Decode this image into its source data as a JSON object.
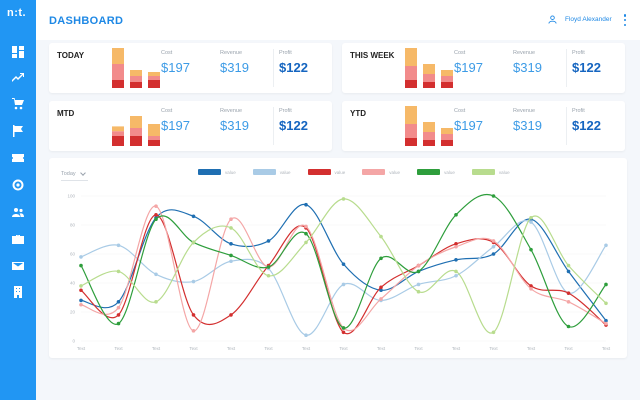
{
  "app": {
    "logo": "n:t.",
    "title": "DASHBOARD",
    "user_name": "Floyd Alexander"
  },
  "sidebar": {
    "items": [
      {
        "icon": "dashboard-icon"
      },
      {
        "icon": "trending-icon"
      },
      {
        "icon": "cart-icon"
      },
      {
        "icon": "flag-icon"
      },
      {
        "icon": "ticket-icon"
      },
      {
        "icon": "target-icon"
      },
      {
        "icon": "users-icon"
      },
      {
        "icon": "briefcase-icon"
      },
      {
        "icon": "mail-icon"
      },
      {
        "icon": "building-icon"
      }
    ]
  },
  "colors": {
    "sidebar": "#2196f3",
    "accent": "#1e88e5",
    "bar_dark": "#d32f2f",
    "bar_mid": "#f28b8b",
    "bar_light": "#f6b968"
  },
  "cards": [
    {
      "title": "TODAY",
      "bars": [
        {
          "light": 0.4,
          "mid": 0.4,
          "dark": 0.2
        },
        {
          "light": 0.15,
          "mid": 0.15,
          "dark": 0.15
        },
        {
          "light": 0.1,
          "mid": 0.1,
          "dark": 0.2
        }
      ],
      "cost_label": "Cost",
      "cost_value": "$197",
      "revenue_label": "Revenue",
      "revenue_value": "$319",
      "profit_label": "Profit",
      "profit_value": "$122"
    },
    {
      "title": "THIS WEEK",
      "bars": [
        {
          "light": 0.45,
          "mid": 0.35,
          "dark": 0.2
        },
        {
          "light": 0.25,
          "mid": 0.2,
          "dark": 0.15
        },
        {
          "light": 0.15,
          "mid": 0.15,
          "dark": 0.15
        }
      ],
      "cost_label": "Cost",
      "cost_value": "$197",
      "revenue_label": "Revenue",
      "revenue_value": "$319",
      "profit_label": "Profit",
      "profit_value": "$122"
    },
    {
      "title": "MTD",
      "bars": [
        {
          "light": 0.12,
          "mid": 0.12,
          "dark": 0.25
        },
        {
          "light": 0.3,
          "mid": 0.2,
          "dark": 0.25
        },
        {
          "light": 0.3,
          "mid": 0.1,
          "dark": 0.15
        }
      ],
      "cost_label": "Cost",
      "cost_value": "$197",
      "revenue_label": "Revenue",
      "revenue_value": "$319",
      "profit_label": "Profit",
      "profit_value": "$122"
    },
    {
      "title": "YTD",
      "bars": [
        {
          "light": 0.45,
          "mid": 0.35,
          "dark": 0.2
        },
        {
          "light": 0.25,
          "mid": 0.2,
          "dark": 0.15
        },
        {
          "light": 0.15,
          "mid": 0.15,
          "dark": 0.15
        }
      ],
      "cost_label": "Cost",
      "cost_value": "$197",
      "revenue_label": "Revenue",
      "revenue_value": "$319",
      "profit_label": "Profit",
      "profit_value": "$122"
    }
  ],
  "period_filter": "Today",
  "chart_data": {
    "type": "line",
    "x": [
      "Text",
      "Text",
      "Text",
      "Text",
      "Text",
      "Text",
      "Text",
      "Text",
      "Text",
      "Text",
      "Text",
      "Text",
      "Text",
      "Text",
      "Text"
    ],
    "ylim": [
      0,
      100
    ],
    "yticks": [
      0,
      20,
      40,
      60,
      80,
      100
    ],
    "grid": true,
    "legend_position": "top",
    "series": [
      {
        "name": "value",
        "color": "#1f6fb2",
        "values": [
          28,
          27,
          85,
          86,
          67,
          69,
          94,
          53,
          35,
          48,
          56,
          60,
          84,
          48,
          14
        ]
      },
      {
        "name": "value",
        "color": "#a9cbe6",
        "values": [
          58,
          66,
          46,
          41,
          55,
          50,
          4,
          39,
          28,
          39,
          45,
          65,
          82,
          33,
          66
        ]
      },
      {
        "name": "value",
        "color": "#d32f2f",
        "values": [
          35,
          18,
          87,
          18,
          18,
          52,
          78,
          6,
          37,
          52,
          67,
          68,
          38,
          33,
          11
        ]
      },
      {
        "name": "value",
        "color": "#f4a6a6",
        "values": [
          25,
          23,
          93,
          7,
          84,
          51,
          79,
          9,
          29,
          52,
          65,
          69,
          36,
          27,
          12
        ]
      },
      {
        "name": "value",
        "color": "#2e9e3c",
        "values": [
          52,
          12,
          84,
          68,
          59,
          51,
          74,
          9,
          57,
          48,
          87,
          100,
          63,
          10,
          39
        ]
      },
      {
        "name": "value",
        "color": "#b8dc8e",
        "values": [
          38,
          48,
          27,
          68,
          78,
          45,
          68,
          98,
          72,
          34,
          48,
          6,
          85,
          52,
          26
        ]
      }
    ]
  }
}
